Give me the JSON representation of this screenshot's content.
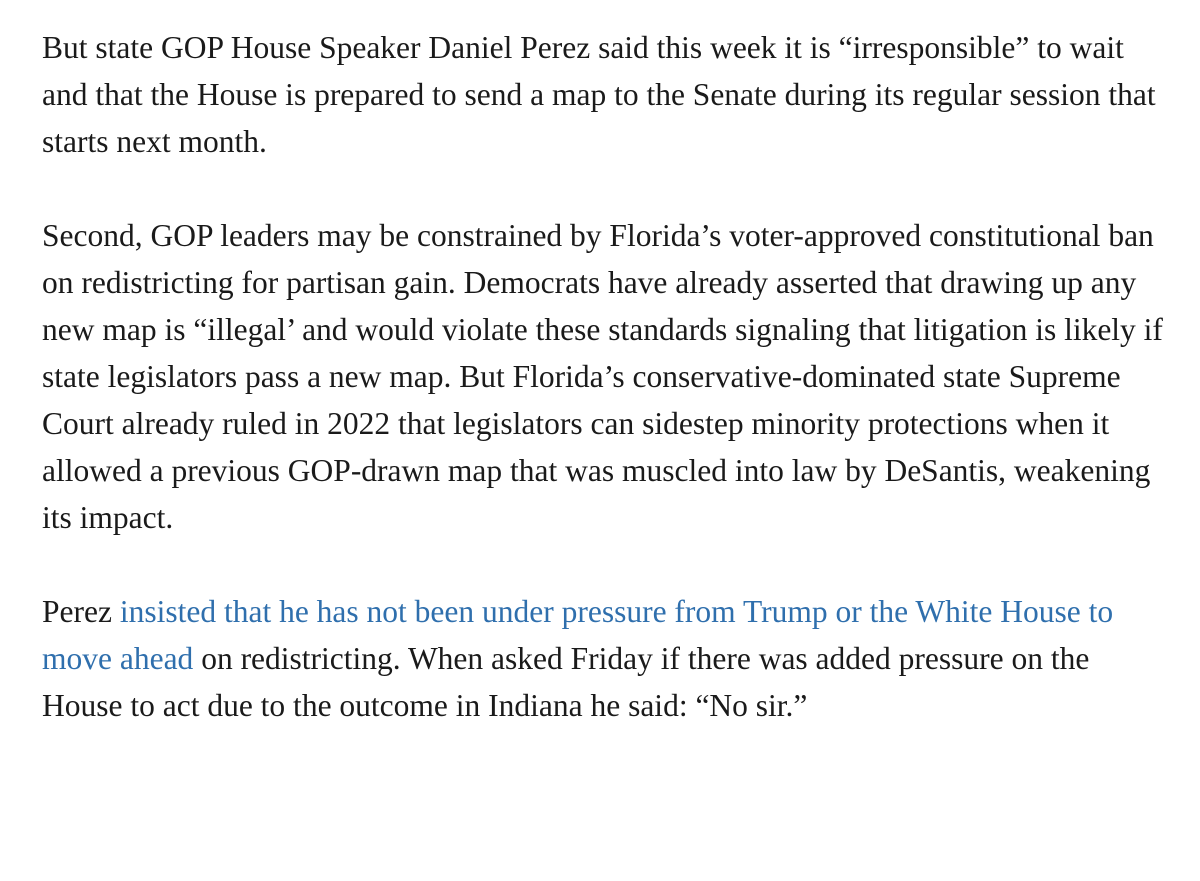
{
  "article": {
    "paragraphs": [
      "But state GOP House Speaker Daniel Perez said this week it is “irresponsible” to wait and that the House is prepared to send a map to the Senate during its regular session that starts next month.",
      "Second, GOP leaders may be constrained by Florida’s voter-approved constitutional ban on redistricting for partisan gain. Democrats have already asserted that drawing up any new map is “illegal’ and would violate these standards signaling that litigation is likely if state legislators pass a new map. But Florida’s conservative-dominated state Supreme Court already ruled in 2022 that legislators can sidestep minority protections when it allowed a previous GOP-drawn map that was muscled into law by DeSantis, weakening its impact."
    ],
    "paragraph3": {
      "lead": "Perez ",
      "link_text": "insisted that he has not been under pressure from Trump or the White House to move ahead",
      "tail": " on redistricting. When asked Friday if there was added pressure on the House to act due to the outcome in Indiana he said: “No sir.”"
    }
  },
  "colors": {
    "text": "#1a1a1a",
    "link": "#2f6fad",
    "background": "#ffffff"
  }
}
